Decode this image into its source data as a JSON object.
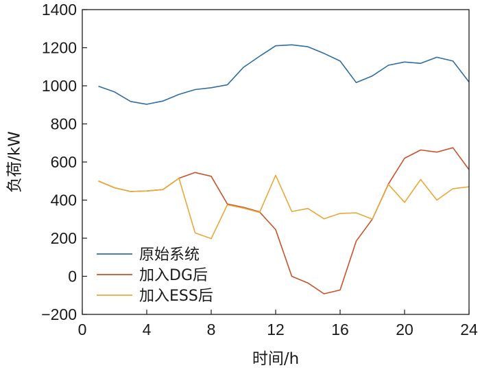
{
  "chart_data": {
    "type": "line",
    "xlabel": "时间/h",
    "ylabel": "负荷/kW",
    "xlim": [
      0,
      24
    ],
    "ylim": [
      -200,
      1400
    ],
    "xticks": [
      0,
      4,
      8,
      12,
      16,
      20,
      24
    ],
    "yticks": [
      -200,
      0,
      200,
      400,
      600,
      800,
      1000,
      1200,
      1400
    ],
    "grid": false,
    "legend_position": "bottom-left",
    "x": [
      1,
      2,
      3,
      4,
      5,
      6,
      7,
      8,
      9,
      10,
      11,
      12,
      13,
      14,
      15,
      16,
      17,
      18,
      19,
      20,
      21,
      22,
      23,
      24
    ],
    "series": [
      {
        "name": "原始系统",
        "color": "#2e6ca4",
        "values": [
          998,
          968,
          918,
          903,
          920,
          955,
          980,
          990,
          1005,
          1097,
          1155,
          1210,
          1215,
          1205,
          1170,
          1130,
          1017,
          1052,
          1108,
          1125,
          1118,
          1150,
          1130,
          1020
        ]
      },
      {
        "name": "加入DG后",
        "color": "#c9502a",
        "values": [
          500,
          465,
          445,
          448,
          455,
          515,
          545,
          525,
          380,
          362,
          338,
          245,
          0,
          -35,
          -92,
          -72,
          185,
          300,
          485,
          620,
          663,
          652,
          675,
          560
        ]
      },
      {
        "name": "加入ESS后",
        "color": "#e8a838",
        "values": [
          500,
          465,
          445,
          448,
          455,
          515,
          228,
          198,
          375,
          358,
          335,
          530,
          340,
          356,
          302,
          330,
          333,
          300,
          482,
          388,
          508,
          400,
          460,
          470
        ]
      }
    ]
  }
}
